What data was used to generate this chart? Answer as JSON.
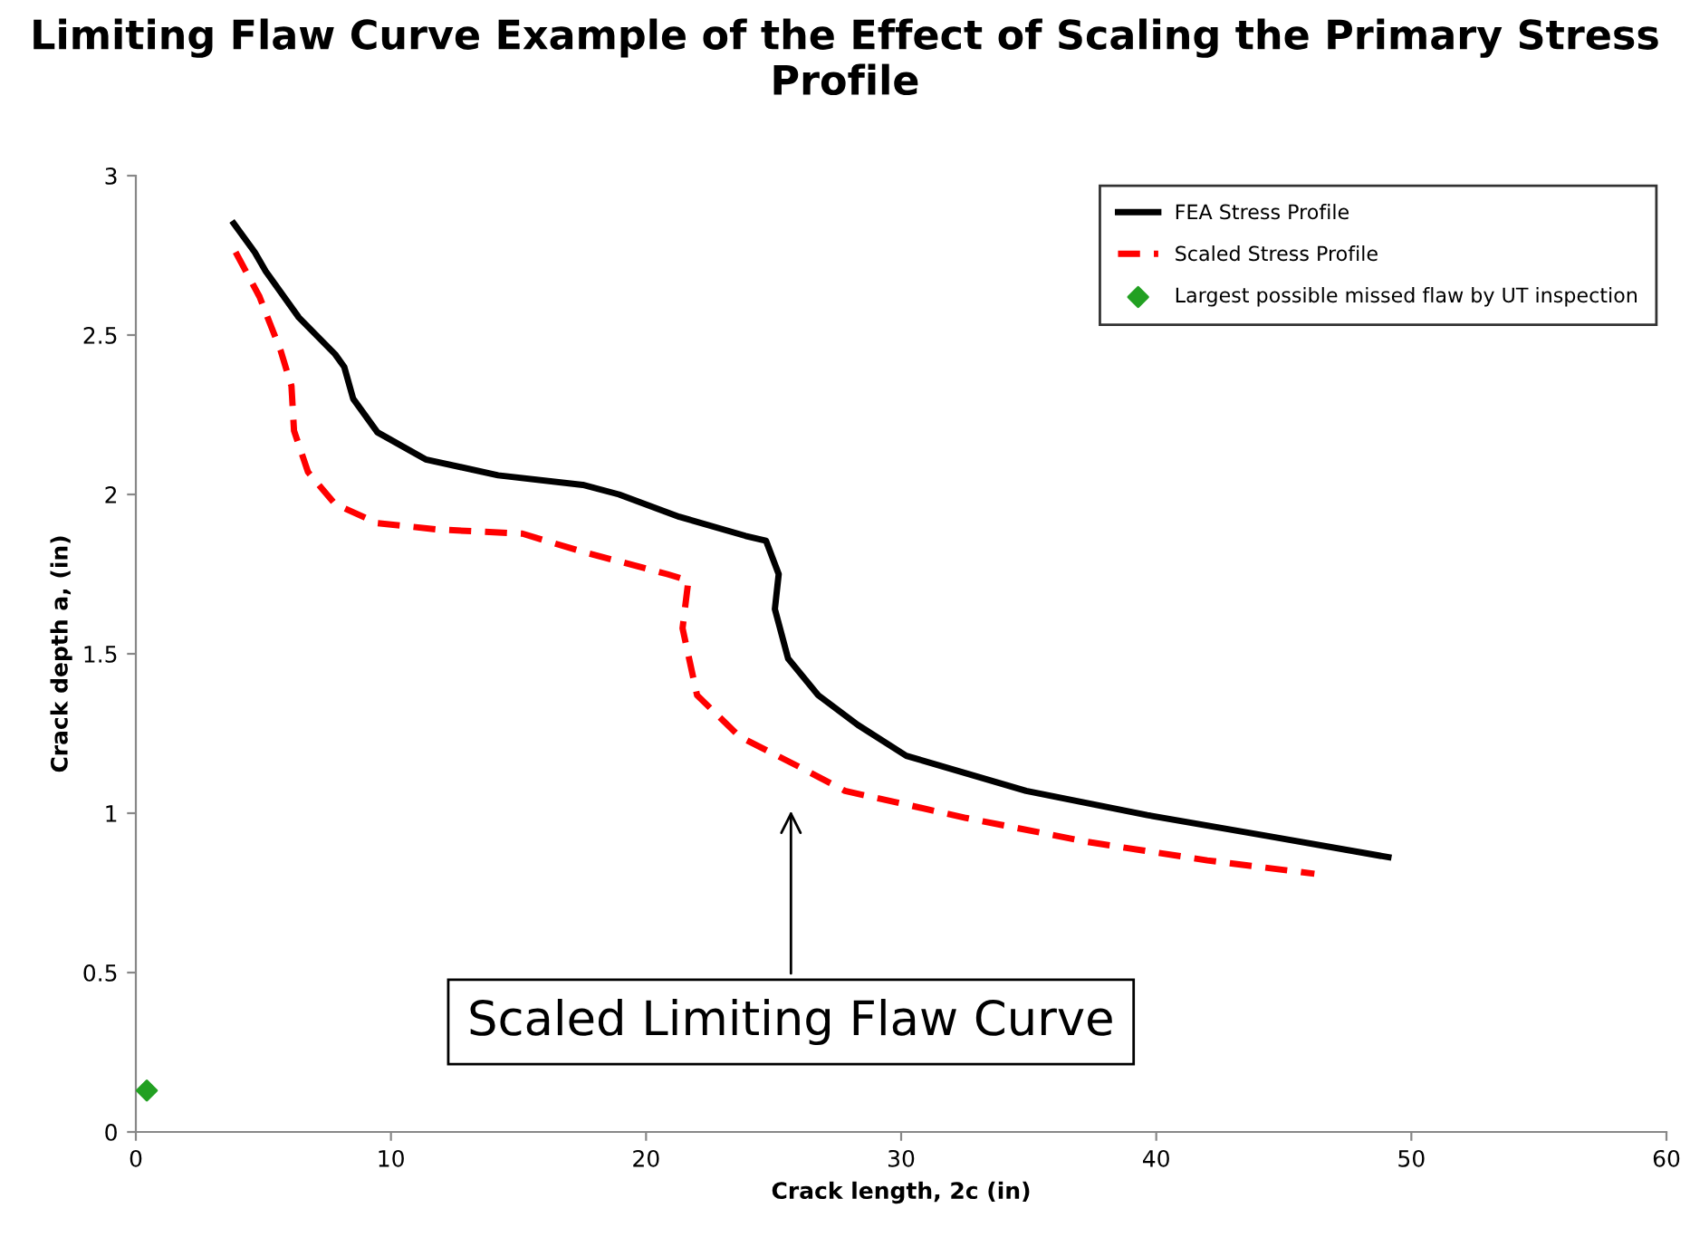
{
  "chart_data": {
    "type": "line",
    "title": "Limiting Flaw Curve Example of the Effect of Scaling the Primary Stress Profile",
    "xlabel": "Crack length, 2c (in)",
    "ylabel": "Crack depth a, (in)",
    "xlim": [
      0,
      60
    ],
    "ylim": [
      0,
      3
    ],
    "xticks": [
      0,
      10,
      20,
      30,
      40,
      50,
      60
    ],
    "yticks": [
      0,
      0.5,
      1,
      1.5,
      2,
      2.5,
      3
    ],
    "grid": false,
    "legend": "top right",
    "marker": "none",
    "series": [
      {
        "name": "FEA Stress Profile",
        "color": "#000000",
        "line_style": "solid",
        "x": [
          3.84,
          4.66,
          5.09,
          6.39,
          7.81,
          8.17,
          8.52,
          9.47,
          11.36,
          14.2,
          17.52,
          18.94,
          21.3,
          23.9,
          24.7,
          25.2,
          25.05,
          25.57,
          26.75,
          28.3,
          30.2,
          34.9,
          39.65,
          44.4,
          49.1
        ],
        "values": [
          2.85,
          2.76,
          2.7,
          2.555,
          2.44,
          2.4,
          2.3,
          2.195,
          2.11,
          2.06,
          2.03,
          2.0,
          1.93,
          1.87,
          1.855,
          1.75,
          1.64,
          1.485,
          1.37,
          1.277,
          1.18,
          1.07,
          0.994,
          0.928,
          0.862
        ]
      },
      {
        "name": "Scaled Stress Profile",
        "color": "#ff0000",
        "line_style": "dashed",
        "x": [
          3.91,
          4.85,
          5.68,
          6.1,
          6.2,
          6.75,
          7.81,
          9.47,
          11.84,
          15.15,
          17.52,
          20.83,
          21.66,
          21.43,
          22.0,
          23.67,
          26.04,
          27.8,
          32.55,
          37.3,
          42.0,
          46.2
        ],
        "values": [
          2.76,
          2.62,
          2.45,
          2.34,
          2.2,
          2.07,
          1.97,
          1.91,
          1.89,
          1.877,
          1.82,
          1.75,
          1.73,
          1.58,
          1.37,
          1.24,
          1.144,
          1.07,
          0.985,
          0.91,
          0.852,
          0.81
        ]
      },
      {
        "name": "Largest possible missed flaw by UT inspection",
        "type": "scatter",
        "marker": "diamond",
        "color": "#22a022",
        "x": [
          0.43
        ],
        "values": [
          0.13
        ]
      }
    ],
    "annotations": [
      "Scaled Limiting Flaw Curve"
    ]
  }
}
